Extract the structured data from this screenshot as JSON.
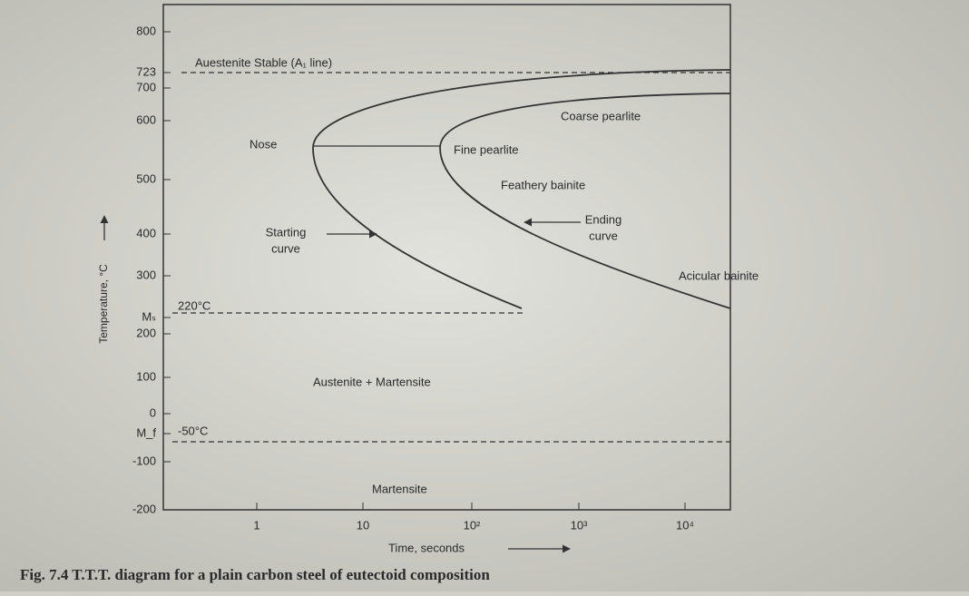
{
  "figure": {
    "caption": "Fig. 7.4 T.T.T. diagram for a plain carbon steel of eutectoid composition",
    "y_axis_label": "Temperature, °C",
    "x_axis_label": "Time, seconds",
    "y_ticks": [
      "800",
      "723",
      "700",
      "600",
      "500",
      "400",
      "300",
      "Mₛ",
      "200",
      "100",
      "0",
      "M_f",
      "-100",
      "-200"
    ],
    "x_ticks": [
      "1",
      "10",
      "10²",
      "10³",
      "10⁴"
    ],
    "annotations": {
      "a1_line": "Auestenite Stable (A₁ line)",
      "nose": "Nose",
      "fine_pearlite": "Fine pearlite",
      "coarse_pearlite": "Coarse pearlite",
      "feathery_bainite": "Feathery bainite",
      "starting_curve": [
        "Starting",
        "curve"
      ],
      "ending_curve": [
        "Ending",
        "curve"
      ],
      "acicular_bainite": "Acicular bainite",
      "ms_temp": "220°C",
      "mf_temp": "-50°C",
      "austenite_martensite": "Austenite + Martensite",
      "martensite": "Martensite"
    }
  }
}
